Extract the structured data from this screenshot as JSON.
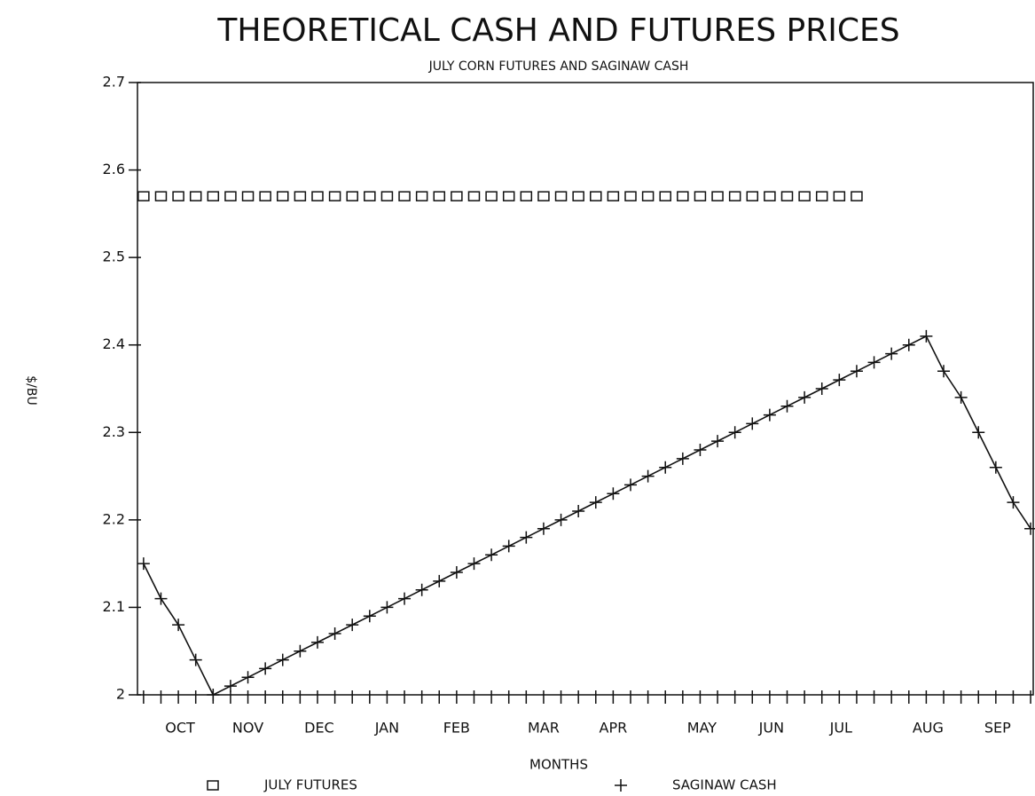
{
  "chart_data": {
    "type": "line",
    "title": "THEORETICAL CASH AND FUTURES PRICES",
    "subtitle": "JULY CORN FUTURES AND SAGINAW CASH",
    "x_label": "MONTHS",
    "y_label": "$/BU",
    "x": [
      0,
      1,
      2,
      3,
      4,
      5,
      6,
      7,
      8,
      9,
      10,
      11,
      12,
      13,
      14,
      15,
      16,
      17,
      18,
      19,
      20,
      21,
      22,
      23,
      24,
      25,
      26,
      27,
      28,
      29,
      30,
      31,
      32,
      33,
      34,
      35,
      36,
      37,
      38,
      39,
      40,
      41,
      42,
      43,
      44,
      45,
      46,
      47,
      48,
      49,
      50,
      51
    ],
    "xlim": [
      -0.35,
      51.15
    ],
    "xticks": [
      {
        "value": 2.1,
        "label": "OCT"
      },
      {
        "value": 6,
        "label": "NOV"
      },
      {
        "value": 10.1,
        "label": "DEC"
      },
      {
        "value": 14,
        "label": "JAN"
      },
      {
        "value": 18,
        "label": "FEB"
      },
      {
        "value": 23,
        "label": "MAR"
      },
      {
        "value": 27,
        "label": "APR"
      },
      {
        "value": 32.1,
        "label": "MAY"
      },
      {
        "value": 36.1,
        "label": "JUN"
      },
      {
        "value": 40.1,
        "label": "JUL"
      },
      {
        "value": 45.1,
        "label": "AUG"
      },
      {
        "value": 49.1,
        "label": "SEP"
      }
    ],
    "ylim": [
      2,
      2.7
    ],
    "yticks": [
      2,
      2.1,
      2.2,
      2.3,
      2.4,
      2.5,
      2.6,
      2.7
    ],
    "grid": false,
    "legend": "bottom",
    "series": [
      {
        "name": "JULY FUTURES",
        "color": "#111111",
        "marker": "square",
        "linestyle": "none",
        "values": [
          2.57,
          2.57,
          2.57,
          2.57,
          2.57,
          2.57,
          2.57,
          2.57,
          2.57,
          2.57,
          2.57,
          2.57,
          2.57,
          2.57,
          2.57,
          2.57,
          2.57,
          2.57,
          2.57,
          2.57,
          2.57,
          2.57,
          2.57,
          2.57,
          2.57,
          2.57,
          2.57,
          2.57,
          2.57,
          2.57,
          2.57,
          2.57,
          2.57,
          2.57,
          2.57,
          2.57,
          2.57,
          2.57,
          2.57,
          2.57,
          2.57,
          2.57,
          null,
          null,
          null,
          null,
          null,
          null,
          null,
          null,
          null,
          null
        ]
      },
      {
        "name": "SAGINAW CASH",
        "color": "#111111",
        "marker": "plus",
        "linestyle": "solid",
        "values": [
          2.15,
          2.11,
          2.08,
          2.04,
          2.0,
          2.01,
          2.02,
          2.03,
          2.04,
          2.05,
          2.06,
          2.07,
          2.08,
          2.09,
          2.1,
          2.11,
          2.12,
          2.13,
          2.14,
          2.15,
          2.16,
          2.17,
          2.18,
          2.19,
          2.2,
          2.21,
          2.22,
          2.23,
          2.24,
          2.25,
          2.26,
          2.27,
          2.28,
          2.29,
          2.3,
          2.31,
          2.32,
          2.33,
          2.34,
          2.35,
          2.36,
          2.37,
          2.38,
          2.39,
          2.4,
          2.41,
          2.37,
          2.34,
          2.3,
          2.26,
          2.22,
          2.19
        ]
      }
    ]
  }
}
